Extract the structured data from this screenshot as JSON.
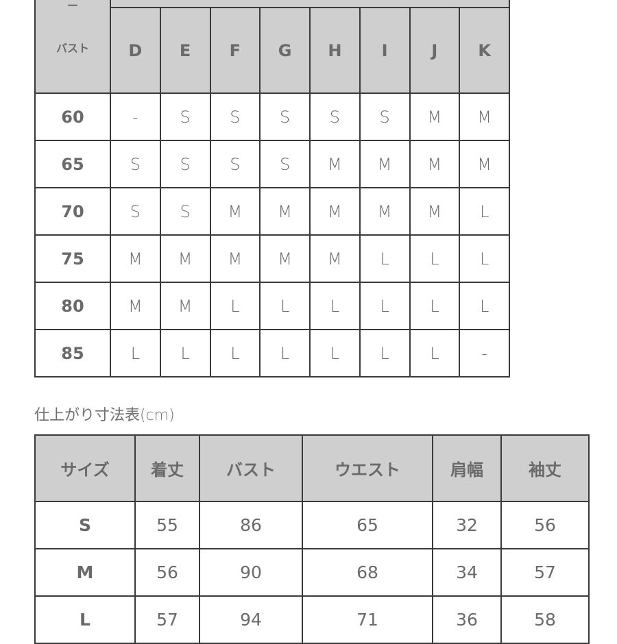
{
  "bust_table": {
    "corner_label_lines": [
      "ー",
      "バスト"
    ],
    "cup_headers": [
      "D",
      "E",
      "F",
      "G",
      "H",
      "I",
      "J",
      "K"
    ],
    "rows": [
      {
        "under_bust": "60",
        "sizes": [
          "-",
          "S",
          "S",
          "S",
          "S",
          "S",
          "M",
          "M"
        ]
      },
      {
        "under_bust": "65",
        "sizes": [
          "S",
          "S",
          "S",
          "S",
          "M",
          "M",
          "M",
          "M"
        ]
      },
      {
        "under_bust": "70",
        "sizes": [
          "S",
          "S",
          "M",
          "M",
          "M",
          "M",
          "M",
          "L"
        ]
      },
      {
        "under_bust": "75",
        "sizes": [
          "M",
          "M",
          "M",
          "M",
          "M",
          "L",
          "L",
          "L"
        ]
      },
      {
        "under_bust": "80",
        "sizes": [
          "M",
          "M",
          "L",
          "L",
          "L",
          "L",
          "L",
          "L"
        ]
      },
      {
        "under_bust": "85",
        "sizes": [
          "L",
          "L",
          "L",
          "L",
          "L",
          "L",
          "L",
          "-"
        ]
      }
    ]
  },
  "finished_title": "仕上がり寸法表(cm)",
  "finished_table": {
    "headers": [
      "サイズ",
      "着丈",
      "バスト",
      "ウエスト",
      "肩幅",
      "袖丈"
    ],
    "rows": [
      [
        "S",
        "55",
        "86",
        "65",
        "32",
        "56"
      ],
      [
        "M",
        "56",
        "90",
        "68",
        "34",
        "57"
      ],
      [
        "L",
        "57",
        "94",
        "71",
        "36",
        "58"
      ]
    ]
  },
  "colors": {
    "header_fill": "#cfcfcf",
    "border": "#3a3a3a",
    "text": "#6a6a6a"
  }
}
